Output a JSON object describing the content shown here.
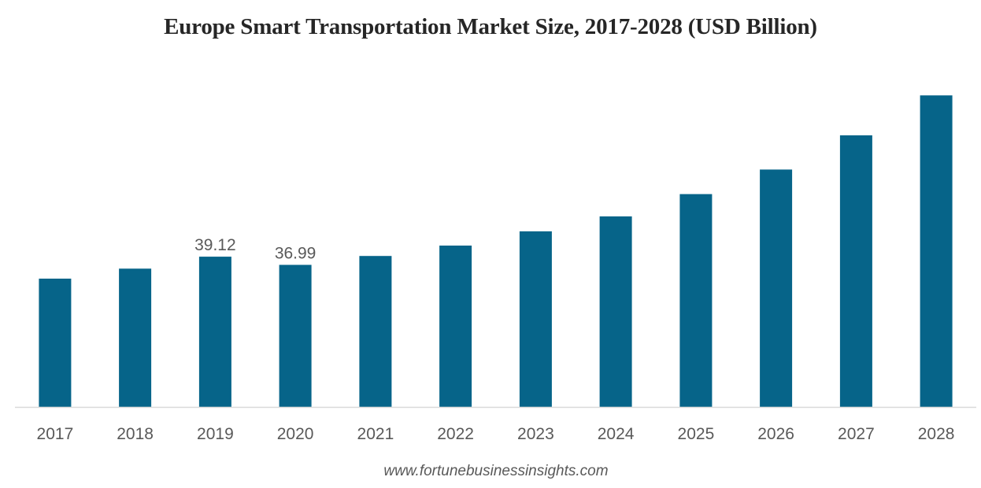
{
  "chart_data": {
    "type": "bar",
    "title": "Europe Smart Transportation Market Size, 2017-2028 (USD Billion)",
    "xlabel": "",
    "ylabel": "",
    "categories": [
      "2017",
      "2018",
      "2019",
      "2020",
      "2021",
      "2022",
      "2023",
      "2024",
      "2025",
      "2026",
      "2027",
      "2028"
    ],
    "values": [
      33.4,
      36.0,
      39.12,
      36.99,
      39.3,
      42.0,
      45.7,
      49.6,
      55.4,
      61.8,
      70.7,
      81.1
    ],
    "data_labels": {
      "2019": "39.12",
      "2020": "36.99"
    },
    "ylim": [
      0,
      84
    ],
    "grid": false,
    "y_axis_visible": false,
    "bar_color": "#066489",
    "axis_color": "#d9d9d9"
  },
  "source": "www.fortunebusinessinsights.com"
}
